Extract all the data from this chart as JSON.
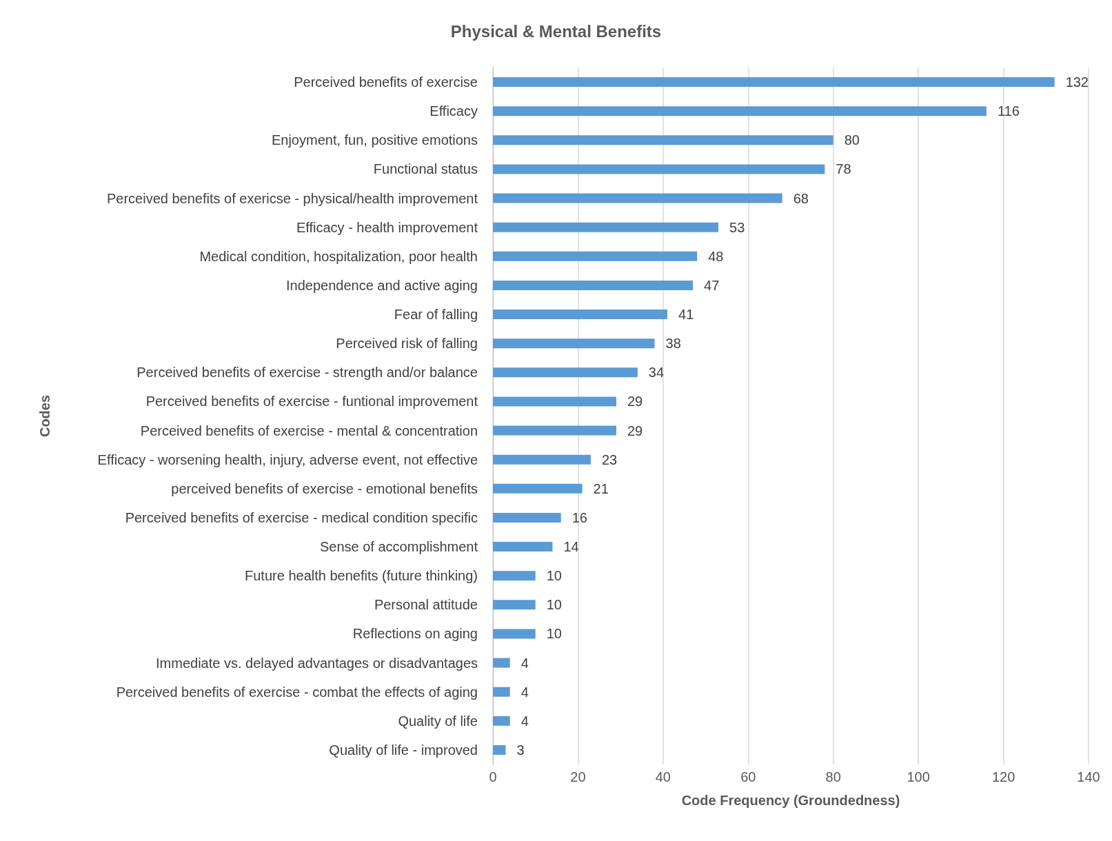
{
  "chart_data": {
    "type": "bar",
    "orientation": "horizontal",
    "title": "Physical & Mental Benefits",
    "xlabel": "Code Frequency (Groundedness)",
    "ylabel": "Codes",
    "categories": [
      "Perceived benefits of exercise",
      "Efficacy",
      "Enjoyment, fun, positive emotions",
      "Functional status",
      "Perceived benefits of exericse - physical/health improvement",
      "Efficacy - health improvement",
      "Medical condition, hospitalization, poor health",
      "Independence and active aging",
      "Fear of falling",
      "Perceived risk of falling",
      "Perceived benefits of exercise - strength and/or balance",
      "Perceived benefits of exercise - funtional improvement",
      "Perceived benefits of exercise - mental & concentration",
      "Efficacy - worsening health, injury, adverse event, not effective",
      "perceived benefits of exercise - emotional benefits",
      "Perceived benefits of exercise - medical condition specific",
      "Sense of accomplishment",
      "Future health benefits (future thinking)",
      "Personal attitude",
      "Reflections on aging",
      "Immediate vs. delayed advantages or disadvantages",
      "Perceived benefits of exercise - combat the effects of aging",
      "Quality of life",
      "Quality of life - improved"
    ],
    "values": [
      132,
      116,
      80,
      78,
      68,
      53,
      48,
      47,
      41,
      38,
      34,
      29,
      29,
      23,
      21,
      16,
      14,
      10,
      10,
      10,
      4,
      4,
      4,
      3
    ],
    "color": "#5b9bd5",
    "xlim": [
      0,
      140
    ],
    "xticks": [
      0,
      20,
      40,
      60,
      80,
      100,
      120,
      140
    ],
    "grid": "x",
    "data_labels": true
  }
}
